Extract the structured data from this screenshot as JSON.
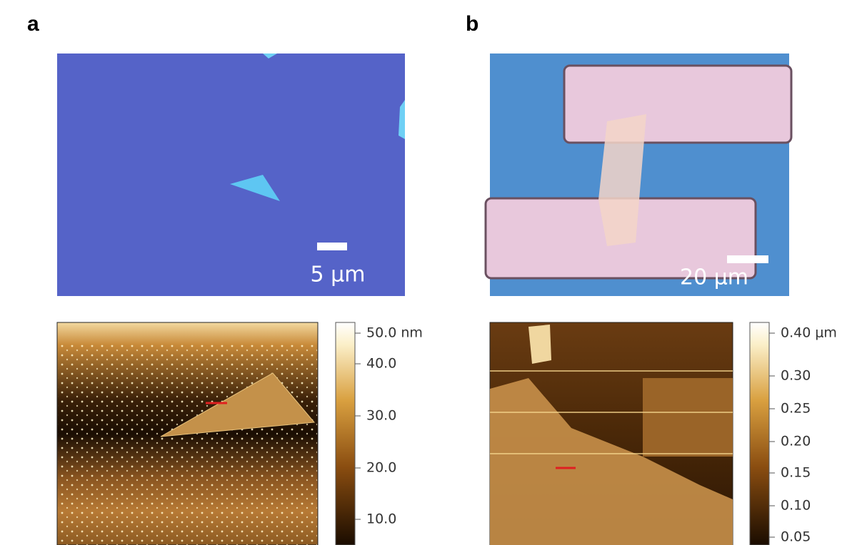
{
  "panels": [
    {
      "label": "a",
      "scale_bar": "5 μm",
      "colorbar_ticks": [
        "50.0 nm",
        "40.0",
        "30.0",
        "20.0",
        "10.0"
      ]
    },
    {
      "label": "b",
      "scale_bar": "20 μm",
      "colorbar_ticks": [
        "0.40 μm",
        "0.30",
        "0.25",
        "0.20",
        "0.15",
        "0.10",
        "0.05"
      ]
    }
  ]
}
